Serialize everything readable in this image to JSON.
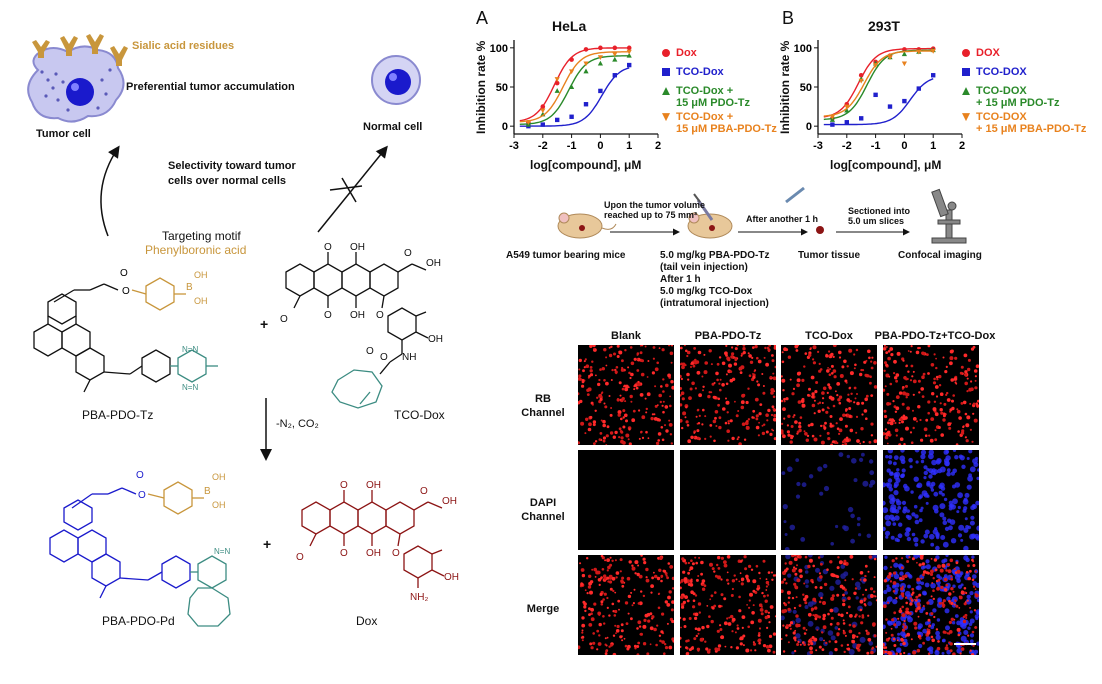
{
  "scheme": {
    "sialic_label": "Sialic acid residues",
    "tumor_label": "Tumor cell",
    "preferential_label": "Preferential tumor accumulation",
    "normal_label": "Normal cell",
    "selectivity_line1": "Selectivity toward tumor",
    "selectivity_line2": "cells over normal cells",
    "targeting_line1": "Targeting motif",
    "targeting_line2": "Phenylboronic acid",
    "pba_pdo_tz": "PBA-PDO-Tz",
    "tco_dox": "TCO-Dox",
    "reaction_cond": "-N₂, CO₂",
    "pba_pdo_pd": "PBA-PDO-Pd",
    "dox": "Dox",
    "plus": "+",
    "colors": {
      "gold": "#c8963c",
      "blue": "#1a1acc",
      "teal": "#3c8c82",
      "maroon": "#8c1414"
    }
  },
  "panelA": {
    "letter": "A",
    "legend": [
      "Dox",
      "TCO-Dox",
      "TCO-Dox +",
      "15 μM PDO-Tz",
      "TCO-Dox +",
      "15 μM PBA-PDO-Tz"
    ]
  },
  "panelB": {
    "letter": "B",
    "legend": [
      "DOX",
      "TCO-DOX",
      "TCO-DOX",
      "+ 15 μM PDO-Tz",
      "TCO-DOX",
      "+ 15 μM PBA-PDO-Tz"
    ]
  },
  "chart_data": [
    {
      "type": "scatter",
      "title": "HeLa",
      "xlabel": "log[compound], μM",
      "ylabel": "Inhibition rate %",
      "xlim": [
        -3,
        2
      ],
      "ylim": [
        -10,
        110
      ],
      "xticks": [
        -3,
        -2,
        -1,
        0,
        1,
        2
      ],
      "yticks": [
        0,
        50,
        100
      ],
      "legend": "right",
      "series": [
        {
          "name": "Dox",
          "color": "#e8202a",
          "x": [
            -2.5,
            -2,
            -1.5,
            -1,
            -0.5,
            0,
            0.5,
            1
          ],
          "y": [
            5,
            25,
            55,
            85,
            98,
            100,
            100,
            100
          ],
          "ec50": -1.6
        },
        {
          "name": "TCO-Dox",
          "color": "#2020cc",
          "x": [
            -2.5,
            -2,
            -1.5,
            -1,
            -0.5,
            0,
            0.5,
            1
          ],
          "y": [
            0,
            2,
            8,
            12,
            28,
            45,
            65,
            78
          ],
          "ec50": 0.05
        },
        {
          "name": "TCO-Dox + 15 μM PDO-Tz",
          "color": "#2a8a2a",
          "x": [
            -2.5,
            -2,
            -1.5,
            -1,
            -0.5,
            0,
            0.5,
            1
          ],
          "y": [
            2,
            15,
            45,
            50,
            70,
            80,
            85,
            90
          ],
          "ec50": -1.1
        },
        {
          "name": "TCO-Dox + 15 μM PBA-PDO-Tz",
          "color": "#e8821e",
          "x": [
            -2.5,
            -2,
            -1.5,
            -1,
            -0.5,
            0,
            0.5,
            1
          ],
          "y": [
            5,
            20,
            60,
            70,
            80,
            88,
            92,
            95
          ],
          "ec50": -1.3
        }
      ]
    },
    {
      "type": "scatter",
      "title": "293T",
      "xlabel": "log[compound], μM",
      "ylabel": "Inhibition rate %",
      "xlim": [
        -3,
        2
      ],
      "ylim": [
        -10,
        110
      ],
      "xticks": [
        -3,
        -2,
        -1,
        0,
        1,
        2
      ],
      "yticks": [
        0,
        50,
        100
      ],
      "legend": "right",
      "series": [
        {
          "name": "DOX",
          "color": "#e8202a",
          "x": [
            -2.5,
            -2,
            -1.5,
            -1,
            -0.5,
            0,
            0.5,
            1
          ],
          "y": [
            10,
            28,
            65,
            82,
            90,
            98,
            98,
            99
          ],
          "ec50": -1.6
        },
        {
          "name": "TCO-DOX",
          "color": "#2020cc",
          "x": [
            -2.5,
            -2,
            -1.5,
            -1,
            -0.5,
            0,
            0.5,
            1
          ],
          "y": [
            2,
            5,
            10,
            40,
            25,
            32,
            48,
            65
          ],
          "ec50": 0.2
        },
        {
          "name": "TCO-DOX + 15 μM PDO-Tz",
          "color": "#2a8a2a",
          "x": [
            -2.5,
            -2,
            -1.5,
            -1,
            -0.5,
            0,
            0.5,
            1
          ],
          "y": [
            8,
            20,
            60,
            80,
            88,
            92,
            95,
            97
          ],
          "ec50": -1.3
        },
        {
          "name": "TCO-DOX + 15 μM PBA-PDO-Tz",
          "color": "#e8821e",
          "x": [
            -2.5,
            -2,
            -1.5,
            -1,
            -0.5,
            0,
            0.5,
            1
          ],
          "y": [
            12,
            25,
            58,
            78,
            88,
            80,
            95,
            96
          ],
          "ec50": -1.4
        }
      ]
    }
  ],
  "workflow": {
    "mice_label": "A549 tumor bearing mice",
    "step1_line1": "Upon the tumor volume",
    "step1_line2": "reached up to 75 mm³",
    "inject_line1": "5.0 mg/kg PBA-PDO-Tz",
    "inject_line2": "(tail vein injection)",
    "inject_line3": "After 1 h",
    "inject_line4": "5.0 mg/kg TCO-Dox",
    "inject_line5": "(intratumoral injection)",
    "step2": "After another 1 h",
    "tissue_label": "Tumor tissue",
    "step3_line1": "Sectioned into",
    "step3_line2": "5.0 um slices",
    "confocal_label": "Confocal imaging"
  },
  "imaging": {
    "columns": [
      "Blank",
      "PBA-PDO-Tz",
      "TCO-Dox",
      "PBA-PDO-Tz+TCO-Dox"
    ],
    "rows": [
      {
        "line1": "RB",
        "line2": "Channel"
      },
      {
        "line1": "DAPI",
        "line2": "Channel"
      },
      {
        "line1": "Merge",
        "line2": ""
      }
    ]
  }
}
